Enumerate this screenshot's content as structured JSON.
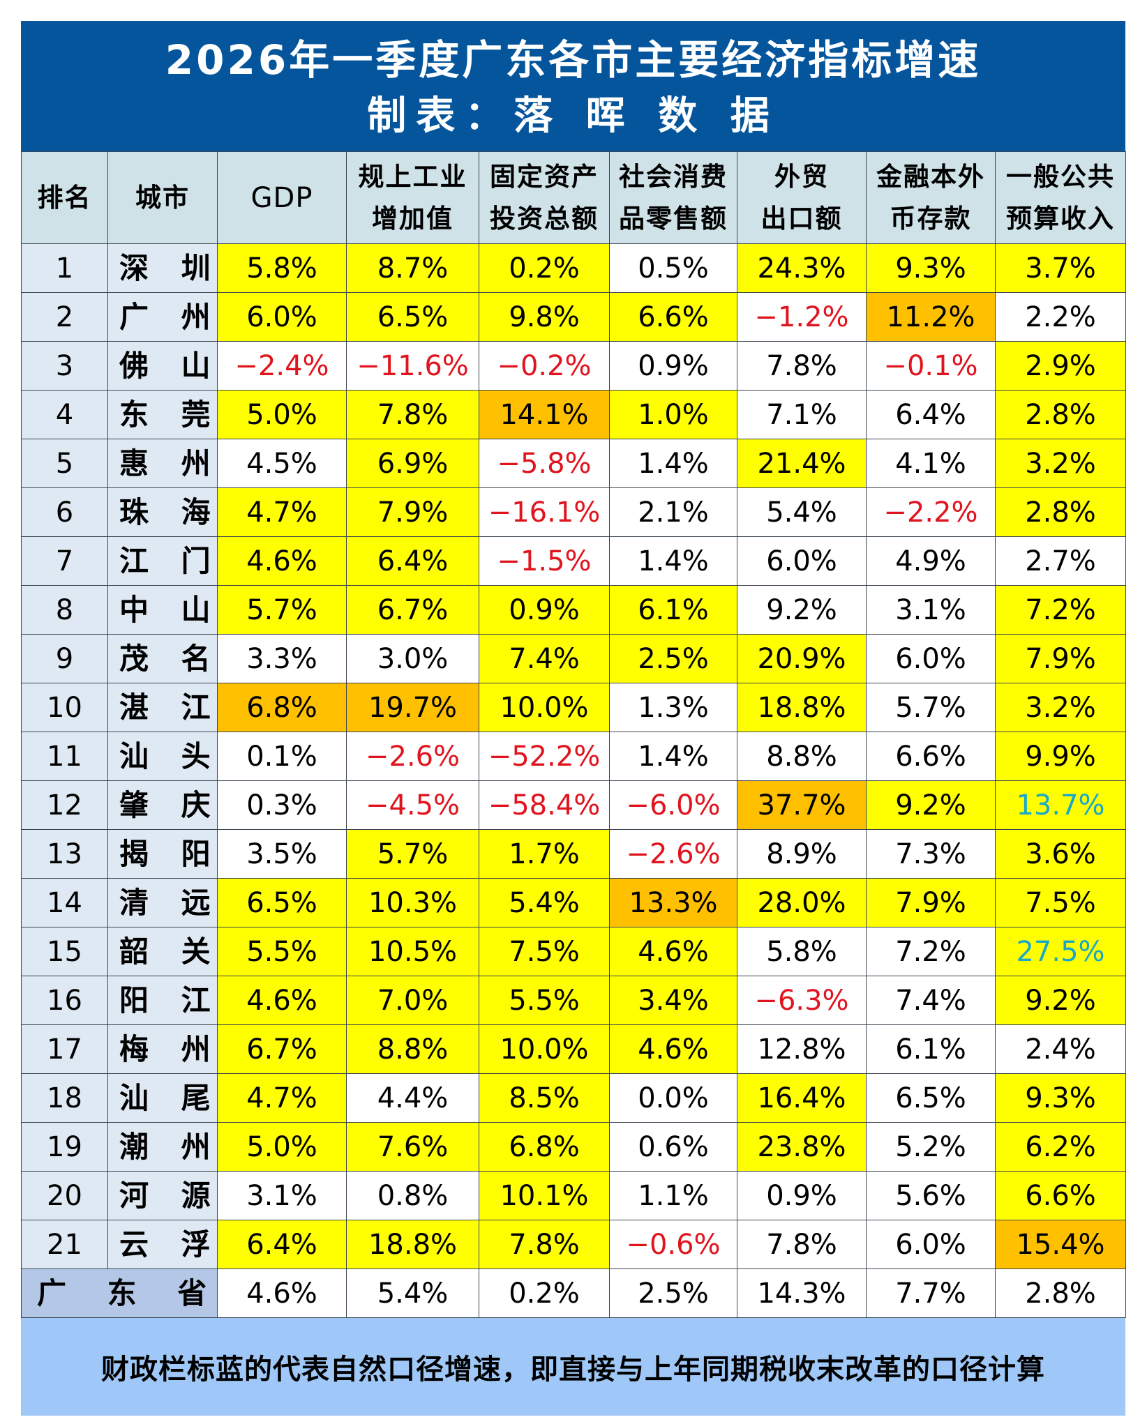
{
  "header": {
    "title": "2026年一季度广东各市主要经济指标增速",
    "subtitle": "制表：落 晖 数 据"
  },
  "columns": [
    {
      "key": "rank",
      "lines": [
        "排名"
      ]
    },
    {
      "key": "city",
      "lines": [
        "城市"
      ]
    },
    {
      "key": "gdp",
      "lines": [
        "GDP"
      ]
    },
    {
      "key": "industry",
      "lines": [
        "规上工业",
        "增加值"
      ]
    },
    {
      "key": "fixed_investment",
      "lines": [
        "固定资产",
        "投资总额"
      ]
    },
    {
      "key": "retail",
      "lines": [
        "社会消费",
        "品零售额"
      ]
    },
    {
      "key": "exports",
      "lines": [
        "外贸",
        "出口额"
      ]
    },
    {
      "key": "deposits",
      "lines": [
        "金融本外",
        "币存款"
      ]
    },
    {
      "key": "budget_revenue",
      "lines": [
        "一般公共",
        "预算收入"
      ]
    }
  ],
  "colors": {
    "title_band": "#04559c",
    "header_row": "#cfe2e8",
    "rank_city_cells": "#dfe9f3",
    "province_label": "#b4c7e7",
    "highlight_yellow": "#ffff00",
    "highlight_orange": "#ffc000",
    "negative_text": "#e0141e",
    "natural_basis_text": "#1aa8c8",
    "footer": "#9fc8f8"
  },
  "legend_note": "cell background: Y = yellow, O = orange, W = white; text color: neg = red (negative), teal = natural-basis fiscal growth",
  "rows": [
    {
      "rank": "1",
      "city": "深 圳",
      "values": [
        "5.8%",
        "8.7%",
        "0.2%",
        "0.5%",
        "24.3%",
        "9.3%",
        "3.7%"
      ],
      "bg": [
        "Y",
        "Y",
        "Y",
        "W",
        "Y",
        "Y",
        "Y"
      ],
      "fg": [
        "",
        "",
        "",
        "",
        "",
        "",
        ""
      ]
    },
    {
      "rank": "2",
      "city": "广 州",
      "values": [
        "6.0%",
        "6.5%",
        "9.8%",
        "6.6%",
        "−1.2%",
        "11.2%",
        "2.2%"
      ],
      "bg": [
        "Y",
        "Y",
        "Y",
        "Y",
        "W",
        "O",
        "W"
      ],
      "fg": [
        "",
        "",
        "",
        "",
        "neg",
        "",
        ""
      ]
    },
    {
      "rank": "3",
      "city": "佛 山",
      "values": [
        "−2.4%",
        "−11.6%",
        "−0.2%",
        "0.9%",
        "7.8%",
        "−0.1%",
        "2.9%"
      ],
      "bg": [
        "W",
        "W",
        "W",
        "W",
        "W",
        "W",
        "Y"
      ],
      "fg": [
        "neg",
        "neg",
        "neg",
        "",
        "",
        "neg",
        ""
      ]
    },
    {
      "rank": "4",
      "city": "东 莞",
      "values": [
        "5.0%",
        "7.8%",
        "14.1%",
        "1.0%",
        "7.1%",
        "6.4%",
        "2.8%"
      ],
      "bg": [
        "Y",
        "Y",
        "O",
        "Y",
        "W",
        "W",
        "Y"
      ],
      "fg": [
        "",
        "",
        "",
        "",
        "",
        "",
        ""
      ]
    },
    {
      "rank": "5",
      "city": "惠 州",
      "values": [
        "4.5%",
        "6.9%",
        "−5.8%",
        "1.4%",
        "21.4%",
        "4.1%",
        "3.2%"
      ],
      "bg": [
        "W",
        "Y",
        "W",
        "W",
        "Y",
        "W",
        "Y"
      ],
      "fg": [
        "",
        "",
        "neg",
        "",
        "",
        "",
        ""
      ]
    },
    {
      "rank": "6",
      "city": "珠 海",
      "values": [
        "4.7%",
        "7.9%",
        "−16.1%",
        "2.1%",
        "5.4%",
        "−2.2%",
        "2.8%"
      ],
      "bg": [
        "Y",
        "Y",
        "W",
        "W",
        "W",
        "W",
        "Y"
      ],
      "fg": [
        "",
        "",
        "neg",
        "",
        "",
        "neg",
        ""
      ]
    },
    {
      "rank": "7",
      "city": "江 门",
      "values": [
        "4.6%",
        "6.4%",
        "−1.5%",
        "1.4%",
        "6.0%",
        "4.9%",
        "2.7%"
      ],
      "bg": [
        "Y",
        "Y",
        "W",
        "W",
        "W",
        "W",
        "W"
      ],
      "fg": [
        "",
        "",
        "neg",
        "",
        "",
        "",
        ""
      ]
    },
    {
      "rank": "8",
      "city": "中 山",
      "values": [
        "5.7%",
        "6.7%",
        "0.9%",
        "6.1%",
        "9.2%",
        "3.1%",
        "7.2%"
      ],
      "bg": [
        "Y",
        "Y",
        "Y",
        "Y",
        "W",
        "W",
        "Y"
      ],
      "fg": [
        "",
        "",
        "",
        "",
        "",
        "",
        ""
      ]
    },
    {
      "rank": "9",
      "city": "茂 名",
      "values": [
        "3.3%",
        "3.0%",
        "7.4%",
        "2.5%",
        "20.9%",
        "6.0%",
        "7.9%"
      ],
      "bg": [
        "W",
        "W",
        "Y",
        "Y",
        "Y",
        "W",
        "Y"
      ],
      "fg": [
        "",
        "",
        "",
        "",
        "",
        "",
        ""
      ]
    },
    {
      "rank": "10",
      "city": "湛 江",
      "values": [
        "6.8%",
        "19.7%",
        "10.0%",
        "1.3%",
        "18.8%",
        "5.7%",
        "3.2%"
      ],
      "bg": [
        "O",
        "O",
        "Y",
        "W",
        "Y",
        "W",
        "Y"
      ],
      "fg": [
        "",
        "",
        "",
        "",
        "",
        "",
        ""
      ]
    },
    {
      "rank": "11",
      "city": "汕 头",
      "values": [
        "0.1%",
        "−2.6%",
        "−52.2%",
        "1.4%",
        "8.8%",
        "6.6%",
        "9.9%"
      ],
      "bg": [
        "W",
        "W",
        "W",
        "W",
        "W",
        "W",
        "Y"
      ],
      "fg": [
        "",
        "neg",
        "neg",
        "",
        "",
        "",
        ""
      ]
    },
    {
      "rank": "12",
      "city": "肇 庆",
      "values": [
        "0.3%",
        "−4.5%",
        "−58.4%",
        "−6.0%",
        "37.7%",
        "9.2%",
        "13.7%"
      ],
      "bg": [
        "W",
        "W",
        "W",
        "W",
        "O",
        "Y",
        "Y"
      ],
      "fg": [
        "",
        "neg",
        "neg",
        "neg",
        "",
        "",
        "teal"
      ]
    },
    {
      "rank": "13",
      "city": "揭 阳",
      "values": [
        "3.5%",
        "5.7%",
        "1.7%",
        "−2.6%",
        "8.9%",
        "7.3%",
        "3.6%"
      ],
      "bg": [
        "W",
        "Y",
        "Y",
        "W",
        "W",
        "W",
        "Y"
      ],
      "fg": [
        "",
        "",
        "",
        "neg",
        "",
        "",
        ""
      ]
    },
    {
      "rank": "14",
      "city": "清 远",
      "values": [
        "6.5%",
        "10.3%",
        "5.4%",
        "13.3%",
        "28.0%",
        "7.9%",
        "7.5%"
      ],
      "bg": [
        "Y",
        "Y",
        "Y",
        "O",
        "Y",
        "Y",
        "Y"
      ],
      "fg": [
        "",
        "",
        "",
        "",
        "",
        "",
        ""
      ]
    },
    {
      "rank": "15",
      "city": "韶 关",
      "values": [
        "5.5%",
        "10.5%",
        "7.5%",
        "4.6%",
        "5.8%",
        "7.2%",
        "27.5%"
      ],
      "bg": [
        "Y",
        "Y",
        "Y",
        "Y",
        "W",
        "W",
        "Y"
      ],
      "fg": [
        "",
        "",
        "",
        "",
        "",
        "",
        "teal"
      ]
    },
    {
      "rank": "16",
      "city": "阳 江",
      "values": [
        "4.6%",
        "7.0%",
        "5.5%",
        "3.4%",
        "−6.3%",
        "7.4%",
        "9.2%"
      ],
      "bg": [
        "Y",
        "Y",
        "Y",
        "Y",
        "W",
        "W",
        "Y"
      ],
      "fg": [
        "",
        "",
        "",
        "",
        "neg",
        "",
        ""
      ]
    },
    {
      "rank": "17",
      "city": "梅 州",
      "values": [
        "6.7%",
        "8.8%",
        "10.0%",
        "4.6%",
        "12.8%",
        "6.1%",
        "2.4%"
      ],
      "bg": [
        "Y",
        "Y",
        "Y",
        "Y",
        "W",
        "W",
        "W"
      ],
      "fg": [
        "",
        "",
        "",
        "",
        "",
        "",
        ""
      ]
    },
    {
      "rank": "18",
      "city": "汕 尾",
      "values": [
        "4.7%",
        "4.4%",
        "8.5%",
        "0.0%",
        "16.4%",
        "6.5%",
        "9.3%"
      ],
      "bg": [
        "Y",
        "W",
        "Y",
        "W",
        "Y",
        "W",
        "Y"
      ],
      "fg": [
        "",
        "",
        "",
        "",
        "",
        "",
        ""
      ]
    },
    {
      "rank": "19",
      "city": "潮 州",
      "values": [
        "5.0%",
        "7.6%",
        "6.8%",
        "0.6%",
        "23.8%",
        "5.2%",
        "6.2%"
      ],
      "bg": [
        "Y",
        "Y",
        "Y",
        "W",
        "Y",
        "W",
        "Y"
      ],
      "fg": [
        "",
        "",
        "",
        "",
        "",
        "",
        ""
      ]
    },
    {
      "rank": "20",
      "city": "河 源",
      "values": [
        "3.1%",
        "0.8%",
        "10.1%",
        "1.1%",
        "0.9%",
        "5.6%",
        "6.6%"
      ],
      "bg": [
        "W",
        "W",
        "Y",
        "W",
        "W",
        "W",
        "Y"
      ],
      "fg": [
        "",
        "",
        "",
        "",
        "",
        "",
        ""
      ]
    },
    {
      "rank": "21",
      "city": "云 浮",
      "values": [
        "6.4%",
        "18.8%",
        "7.8%",
        "−0.6%",
        "7.8%",
        "6.0%",
        "15.4%"
      ],
      "bg": [
        "Y",
        "Y",
        "Y",
        "W",
        "W",
        "W",
        "O"
      ],
      "fg": [
        "",
        "",
        "",
        "neg",
        "",
        "",
        ""
      ]
    }
  ],
  "province": {
    "label": "广 东 省",
    "values": [
      "4.6%",
      "5.4%",
      "0.2%",
      "2.5%",
      "14.3%",
      "7.7%",
      "2.8%"
    ]
  },
  "footer": {
    "note": "财政栏标蓝的代表自然口径增速，即直接与上年同期税收末改革的口径计算"
  },
  "chart_data": {
    "type": "table",
    "title": "2026年一季度广东各市主要经济指标增速",
    "subtitle": "制表：落晖数据",
    "columns": [
      "排名",
      "城市",
      "GDP",
      "规上工业增加值",
      "固定资产投资总额",
      "社会消费品零售额",
      "外贸出口额",
      "金融本外币存款",
      "一般公共预算收入"
    ],
    "rows": [
      [
        1,
        "深圳",
        5.8,
        8.7,
        0.2,
        0.5,
        24.3,
        9.3,
        3.7
      ],
      [
        2,
        "广州",
        6.0,
        6.5,
        9.8,
        6.6,
        -1.2,
        11.2,
        2.2
      ],
      [
        3,
        "佛山",
        -2.4,
        -11.6,
        -0.2,
        0.9,
        7.8,
        -0.1,
        2.9
      ],
      [
        4,
        "东莞",
        5.0,
        7.8,
        14.1,
        1.0,
        7.1,
        6.4,
        2.8
      ],
      [
        5,
        "惠州",
        4.5,
        6.9,
        -5.8,
        1.4,
        21.4,
        4.1,
        3.2
      ],
      [
        6,
        "珠海",
        4.7,
        7.9,
        -16.1,
        2.1,
        5.4,
        -2.2,
        2.8
      ],
      [
        7,
        "江门",
        4.6,
        6.4,
        -1.5,
        1.4,
        6.0,
        4.9,
        2.7
      ],
      [
        8,
        "中山",
        5.7,
        6.7,
        0.9,
        6.1,
        9.2,
        3.1,
        7.2
      ],
      [
        9,
        "茂名",
        3.3,
        3.0,
        7.4,
        2.5,
        20.9,
        6.0,
        7.9
      ],
      [
        10,
        "湛江",
        6.8,
        19.7,
        10.0,
        1.3,
        18.8,
        5.7,
        3.2
      ],
      [
        11,
        "汕头",
        0.1,
        -2.6,
        -52.2,
        1.4,
        8.8,
        6.6,
        9.9
      ],
      [
        12,
        "肇庆",
        0.3,
        -4.5,
        -58.4,
        -6.0,
        37.7,
        9.2,
        13.7
      ],
      [
        13,
        "揭阳",
        3.5,
        5.7,
        1.7,
        -2.6,
        8.9,
        7.3,
        3.6
      ],
      [
        14,
        "清远",
        6.5,
        10.3,
        5.4,
        13.3,
        28.0,
        7.9,
        7.5
      ],
      [
        15,
        "韶关",
        5.5,
        10.5,
        7.5,
        4.6,
        5.8,
        7.2,
        27.5
      ],
      [
        16,
        "阳江",
        4.6,
        7.0,
        5.5,
        3.4,
        -6.3,
        7.4,
        9.2
      ],
      [
        17,
        "梅州",
        6.7,
        8.8,
        10.0,
        4.6,
        12.8,
        6.1,
        2.4
      ],
      [
        18,
        "汕尾",
        4.7,
        4.4,
        8.5,
        0.0,
        16.4,
        6.5,
        9.3
      ],
      [
        19,
        "潮州",
        5.0,
        7.6,
        6.8,
        0.6,
        23.8,
        5.2,
        6.2
      ],
      [
        20,
        "河源",
        3.1,
        0.8,
        10.1,
        1.1,
        0.9,
        5.6,
        6.6
      ],
      [
        21,
        "云浮",
        6.4,
        18.8,
        7.8,
        -0.6,
        7.8,
        6.0,
        15.4
      ],
      [
        "",
        "广东省",
        4.6,
        5.4,
        0.2,
        2.5,
        14.3,
        7.7,
        2.8
      ]
    ],
    "unit": "%",
    "annotations": [
      "财政栏标蓝的代表自然口径增速，即直接与上年同期税收末改革的口径计算"
    ]
  }
}
